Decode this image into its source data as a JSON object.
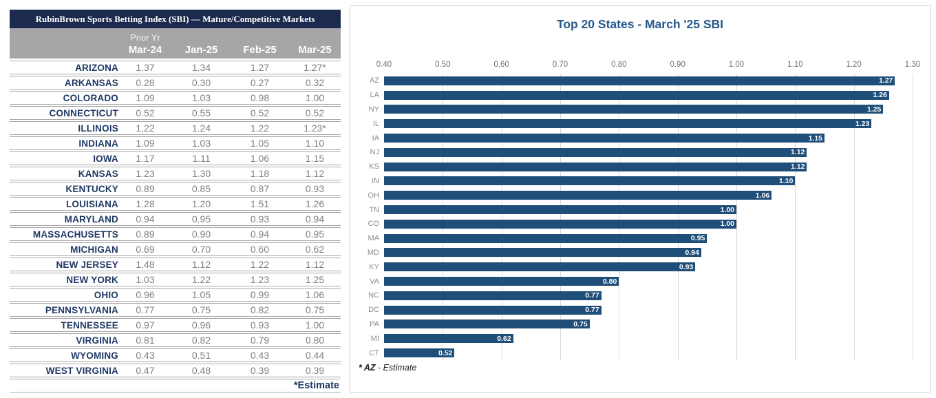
{
  "table": {
    "title": "RubinBrown Sports Betting Index (SBI) — Mature/Competitive Markets",
    "header": {
      "prior_yr": "Prior Yr",
      "columns": [
        "Mar-24",
        "Jan-25",
        "Feb-25",
        "Mar-25"
      ]
    },
    "rows": [
      [
        "ARIZONA",
        "1.37",
        "1.34",
        "1.27",
        "1.27*"
      ],
      [
        "ARKANSAS",
        "0.28",
        "0.30",
        "0.27",
        "0.32"
      ],
      [
        "COLORADO",
        "1.09",
        "1.03",
        "0.98",
        "1.00"
      ],
      [
        "CONNECTICUT",
        "0.52",
        "0.55",
        "0.52",
        "0.52"
      ],
      [
        "ILLINOIS",
        "1.22",
        "1.24",
        "1.22",
        "1.23*"
      ],
      [
        "INDIANA",
        "1.09",
        "1.03",
        "1.05",
        "1.10"
      ],
      [
        "IOWA",
        "1.17",
        "1.11",
        "1.06",
        "1.15"
      ],
      [
        "KANSAS",
        "1.23",
        "1.30",
        "1.18",
        "1.12"
      ],
      [
        "KENTUCKY",
        "0.89",
        "0.85",
        "0.87",
        "0.93"
      ],
      [
        "LOUISIANA",
        "1.28",
        "1.20",
        "1.51",
        "1.26"
      ],
      [
        "MARYLAND",
        "0.94",
        "0.95",
        "0.93",
        "0.94"
      ],
      [
        "MASSACHUSETTS",
        "0.89",
        "0.90",
        "0.94",
        "0.95"
      ],
      [
        "MICHIGAN",
        "0.69",
        "0.70",
        "0.60",
        "0.62"
      ],
      [
        "NEW JERSEY",
        "1.48",
        "1.12",
        "1.22",
        "1.12"
      ],
      [
        "NEW YORK",
        "1.03",
        "1.22",
        "1.23",
        "1.25"
      ],
      [
        "OHIO",
        "0.96",
        "1.05",
        "0.99",
        "1.06"
      ],
      [
        "PENNSYLVANIA",
        "0.77",
        "0.75",
        "0.82",
        "0.75"
      ],
      [
        "TENNESSEE",
        "0.97",
        "0.96",
        "0.93",
        "1.00"
      ],
      [
        "VIRGINIA",
        "0.81",
        "0.82",
        "0.79",
        "0.80"
      ],
      [
        "WYOMING",
        "0.43",
        "0.51",
        "0.43",
        "0.44"
      ],
      [
        "WEST VIRGINIA",
        "0.47",
        "0.48",
        "0.39",
        "0.39"
      ]
    ],
    "footnote": "*Estimate"
  },
  "chart_data": {
    "type": "bar",
    "orientation": "horizontal",
    "title": "Top 20 States -  March '25 SBI",
    "categories": [
      "AZ",
      "LA",
      "NY",
      "IL",
      "IA",
      "NJ",
      "KS",
      "IN",
      "OH",
      "TN",
      "CO",
      "MA",
      "MD",
      "KY",
      "VA",
      "NC",
      "DC",
      "PA",
      "MI",
      "CT"
    ],
    "values": [
      1.27,
      1.26,
      1.25,
      1.23,
      1.15,
      1.12,
      1.12,
      1.1,
      1.06,
      1.0,
      1.0,
      0.95,
      0.94,
      0.93,
      0.8,
      0.77,
      0.77,
      0.75,
      0.62,
      0.52
    ],
    "value_labels": [
      "1.27",
      "1.26",
      "1.25",
      "1.23",
      "1.15",
      "1.12",
      "1.12",
      "1.10",
      "1.06",
      "1.00",
      "1.00",
      "0.95",
      "0.94",
      "0.93",
      "0.80",
      "0.77",
      "0.77",
      "0.75",
      "0.62",
      "0.52"
    ],
    "axis": {
      "min": 0.4,
      "max": 1.3,
      "step": 0.1,
      "position": "top",
      "ticks": [
        "0.40",
        "0.50",
        "0.60",
        "0.70",
        "0.80",
        "0.90",
        "1.00",
        "1.10",
        "1.20",
        "1.30"
      ]
    },
    "grid": true,
    "legend": "none",
    "footnote_bold": "* AZ",
    "footnote_rest": " - Estimate"
  },
  "colors": {
    "table_title_bg": "#1C2B4D",
    "table_header_bg": "#A6A6A6",
    "state_text": "#1F3864",
    "value_text": "#7F7F7F",
    "bar_fill": "#1F4E79",
    "chart_title_text": "#27598E",
    "gridline": "#D9D9D9",
    "axis_text": "#737373",
    "bar_value_text": "#FFFFFF",
    "panel_border": "#C9C9C9"
  }
}
